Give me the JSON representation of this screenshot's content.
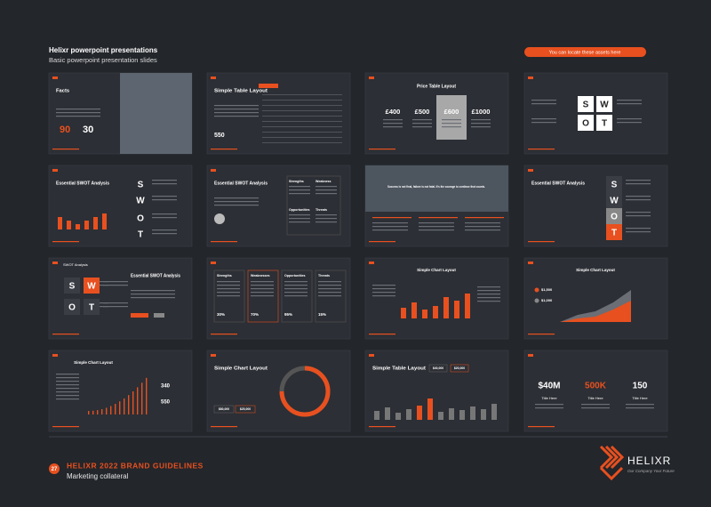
{
  "header": {
    "title": "Helixr powerpoint presentations",
    "subtitle": "Basic powerpoint presentation slides",
    "button": "You can locate these assets here"
  },
  "slides": [
    {
      "title": "Facts",
      "stats": [
        "90",
        "30"
      ]
    },
    {
      "title": "Simple Table Layout",
      "stats": [
        "550"
      ]
    },
    {
      "title": "Price Table Layout",
      "stats": [
        "£400",
        "£500",
        "£600",
        "£1000"
      ]
    },
    {
      "letters": [
        "S",
        "W",
        "O",
        "T"
      ]
    },
    {
      "title": "Essential SWOT Analysis",
      "letters": [
        "S",
        "W",
        "O",
        "T"
      ]
    },
    {
      "title": "Essential SWOT Analysis",
      "labels": [
        "Strengths",
        "Weakness",
        "Opportunities",
        "Threats"
      ]
    },
    {
      "quote": "Success is not final, failure is not fatal. It's the courage to continue that counts."
    },
    {
      "title": "Essential SWOT Analysis",
      "letters": [
        "S",
        "W",
        "O",
        "T"
      ]
    },
    {
      "heading": "SWOT Analysis",
      "title": "Essential SWOT Analysis",
      "letters": [
        "S",
        "W",
        "O",
        "T"
      ]
    },
    {
      "labels": [
        "Strengths",
        "Weaknesses",
        "Opportunities",
        "Threats"
      ],
      "stats": [
        "30%",
        "70%",
        "95%",
        "15%"
      ]
    },
    {
      "title": "Simple Chart Layout"
    },
    {
      "title": "Simple Chart Layout",
      "stats": [
        "$1,500",
        "$1,000"
      ]
    },
    {
      "title": "Simple Chart Layout",
      "stats": [
        "340",
        "550"
      ]
    },
    {
      "title": "Simple Chart Layout",
      "stats": [
        "$80,000",
        "$25,000"
      ]
    },
    {
      "title": "Simple Table Layout",
      "stats": [
        "$40,000",
        "$20,000"
      ]
    },
    {
      "stats": [
        "$40M",
        "500K",
        "150"
      ],
      "captions": [
        "Title Here",
        "Title Here",
        "Title Here"
      ]
    }
  ],
  "footer": {
    "page": "27",
    "title": "HELIXR 2022 BRAND GUIDELINES",
    "subtitle": "Marketing collateral"
  },
  "logo": {
    "name": "HELIXR",
    "tagline": "Our Company Your Future"
  }
}
